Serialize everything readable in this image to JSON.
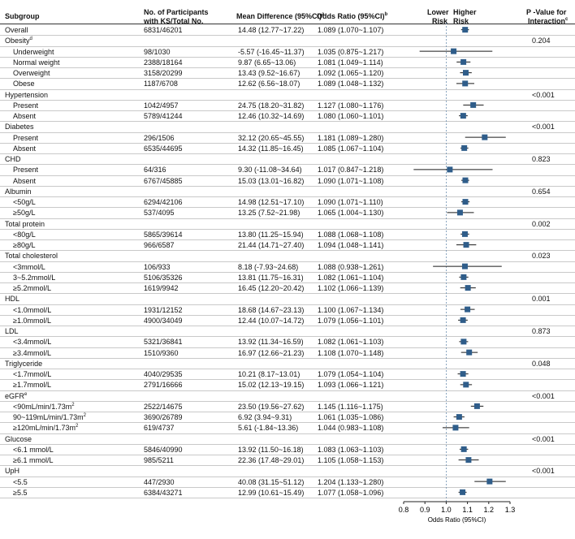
{
  "headers": {
    "subgroup": "Subgroup",
    "participants_line1": "No. of Participants",
    "participants_line2": "with KS/Total No.",
    "mean_diff": "Mean Difference (95%CI)",
    "mean_diff_sup": "a",
    "odds_ratio": "Odds Ratio (95%CI)",
    "odds_ratio_sup": "b",
    "lower_risk_line1": "Lower",
    "lower_risk_line2": "Risk",
    "higher_risk_line1": "Higher",
    "higher_risk_line2": "Risk",
    "pvalue_line1": "P -Value for",
    "pvalue_line2": "Interaction",
    "pvalue_sup": "c"
  },
  "rows": [
    {
      "kind": "head",
      "label": "Overall",
      "n": "6831/46201",
      "md": "14.48  (12.77~17.22)",
      "or_text": "1.089  (1.070~1.107)",
      "or": 1.089,
      "lo": 1.07,
      "hi": 1.107,
      "p": ""
    },
    {
      "kind": "group",
      "label": "Obesity",
      "sup": "d",
      "p": "0.204"
    },
    {
      "kind": "sub",
      "label": "Underweight",
      "n": "98/1030",
      "md": "-5.57  (-16.45~11.37)",
      "or_text": "1.035  (0.875~1.217)",
      "or": 1.035,
      "lo": 0.875,
      "hi": 1.217
    },
    {
      "kind": "sub",
      "label": "Normal weight",
      "n": "2388/18164",
      "md": "9.87  (6.65~13.06)",
      "or_text": "1.081  (1.049~1.114)",
      "or": 1.081,
      "lo": 1.049,
      "hi": 1.114
    },
    {
      "kind": "sub",
      "label": "Overweight",
      "n": "3158/20299",
      "md": "13.43  (9.52~16.67)",
      "or_text": "1.092  (1.065~1.120)",
      "or": 1.092,
      "lo": 1.065,
      "hi": 1.12
    },
    {
      "kind": "sub",
      "label": "Obese",
      "n": "1187/6708",
      "md": "12.62  (6.56~18.07)",
      "or_text": "1.089  (1.048~1.132)",
      "or": 1.089,
      "lo": 1.048,
      "hi": 1.132
    },
    {
      "kind": "group",
      "label": "Hypertension",
      "p": "<0.001"
    },
    {
      "kind": "sub",
      "label": "Present",
      "n": "1042/4957",
      "md": "24.75  (18.20~31.82)",
      "or_text": "1.127  (1.080~1.176)",
      "or": 1.127,
      "lo": 1.08,
      "hi": 1.176
    },
    {
      "kind": "sub",
      "label": "Absent",
      "n": "5789/41244",
      "md": "12.46  (10.32~14.69)",
      "or_text": "1.080  (1.060~1.101)",
      "or": 1.08,
      "lo": 1.06,
      "hi": 1.101
    },
    {
      "kind": "group",
      "label": "Diabetes",
      "p": "<0.001"
    },
    {
      "kind": "sub",
      "label": "Present",
      "n": "296/1506",
      "md": "32.12  (20.65~45.55)",
      "or_text": "1.181  (1.089~1.280)",
      "or": 1.181,
      "lo": 1.089,
      "hi": 1.28
    },
    {
      "kind": "sub",
      "label": "Absent",
      "n": "6535/44695",
      "md": "14.32  (11.85~16.45)",
      "or_text": "1.085  (1.067~1.104)",
      "or": 1.085,
      "lo": 1.067,
      "hi": 1.104
    },
    {
      "kind": "group",
      "label": "CHD",
      "p": "0.823"
    },
    {
      "kind": "sub",
      "label": "Present",
      "n": "64/316",
      "md": "9.30  (-11.08~34.64)",
      "or_text": "1.017  (0.847~1.218)",
      "or": 1.017,
      "lo": 0.847,
      "hi": 1.218
    },
    {
      "kind": "sub",
      "label": "Absent",
      "n": "6767/45885",
      "md": "15.03  (13.01~16.82)",
      "or_text": "1.090  (1.071~1.108)",
      "or": 1.09,
      "lo": 1.071,
      "hi": 1.108
    },
    {
      "kind": "group",
      "label": "Albumin",
      "p": "0.654"
    },
    {
      "kind": "sub",
      "label": "<50g/L",
      "n": "6294/42106",
      "md": "14.98  (12.51~17.10)",
      "or_text": "1.090  (1.071~1.110)",
      "or": 1.09,
      "lo": 1.071,
      "hi": 1.11
    },
    {
      "kind": "sub",
      "label": "≥50g/L",
      "n": "537/4095",
      "md": "13.25  (7.52~21.98)",
      "or_text": "1.065  (1.004~1.130)",
      "or": 1.065,
      "lo": 1.004,
      "hi": 1.13
    },
    {
      "kind": "group",
      "label": "Total protein",
      "p": "0.002"
    },
    {
      "kind": "sub",
      "label": "<80g/L",
      "n": "5865/39614",
      "md": "13.80  (11.25~15.94)",
      "or_text": "1.088  (1.068~1.108)",
      "or": 1.088,
      "lo": 1.068,
      "hi": 1.108
    },
    {
      "kind": "sub",
      "label": "≥80g/L",
      "n": "966/6587",
      "md": "21.44  (14.71~27.40)",
      "or_text": "1.094  (1.048~1.141)",
      "or": 1.094,
      "lo": 1.048,
      "hi": 1.141
    },
    {
      "kind": "group",
      "label": "Total cholesterol",
      "p": "0.023"
    },
    {
      "kind": "sub",
      "label": "<3mmol/L",
      "n": "106/933",
      "md": "8.18  (-7.93~24.68)",
      "or_text": "1.088  (0.938~1.261)",
      "or": 1.088,
      "lo": 0.938,
      "hi": 1.261
    },
    {
      "kind": "sub",
      "label": "3~5.2mmol/L",
      "n": "5106/35326",
      "md": "13.81  (11.75~16.31)",
      "or_text": "1.082  (1.061~1.104)",
      "or": 1.082,
      "lo": 1.061,
      "hi": 1.104
    },
    {
      "kind": "sub",
      "label": "≥5.2mmol/L",
      "n": "1619/9942",
      "md": "16.45  (12.20~20.42)",
      "or_text": "1.102  (1.066~1.139)",
      "or": 1.102,
      "lo": 1.066,
      "hi": 1.139
    },
    {
      "kind": "group",
      "label": "HDL",
      "p": "0.001"
    },
    {
      "kind": "sub",
      "label": "<1.0mmol/L",
      "n": "1931/12152",
      "md": "18.68  (14.67~23.13)",
      "or_text": "1.100  (1.067~1.134)",
      "or": 1.1,
      "lo": 1.067,
      "hi": 1.134
    },
    {
      "kind": "sub",
      "label": "≥1.0mmol/L",
      "n": "4900/34049",
      "md": "12.44  (10.07~14.72)",
      "or_text": "1.079  (1.056~1.101)",
      "or": 1.079,
      "lo": 1.056,
      "hi": 1.101
    },
    {
      "kind": "group",
      "label": "LDL",
      "p": "0.873"
    },
    {
      "kind": "sub",
      "label": "<3.4mmol/L",
      "n": "5321/36841",
      "md": "13.92  (11.34~16.59)",
      "or_text": "1.082  (1.061~1.103)",
      "or": 1.082,
      "lo": 1.061,
      "hi": 1.103
    },
    {
      "kind": "sub",
      "label": "≥3.4mmol/L",
      "n": "1510/9360",
      "md": "16.97  (12.66~21.23)",
      "or_text": "1.108  (1.070~1.148)",
      "or": 1.108,
      "lo": 1.07,
      "hi": 1.148
    },
    {
      "kind": "group",
      "label": "Triglyceride",
      "p": "0.048"
    },
    {
      "kind": "sub",
      "label": "<1.7mmol/L",
      "n": "4040/29535",
      "md": "10.21  (8.17~13.01)",
      "or_text": "1.079  (1.054~1.104)",
      "or": 1.079,
      "lo": 1.054,
      "hi": 1.104
    },
    {
      "kind": "sub",
      "label": "≥1.7mmol/L",
      "n": "2791/16666",
      "md": "15.02  (12.13~19.15)",
      "or_text": "1.093  (1.066~1.121)",
      "or": 1.093,
      "lo": 1.066,
      "hi": 1.121
    },
    {
      "kind": "group",
      "label": "eGFR",
      "sup": "e",
      "p": "<0.001"
    },
    {
      "kind": "sub",
      "label": "<90mL/min/1.73m",
      "sup": "2",
      "n": "2522/14675",
      "md": "23.50  (19.56~27.62)",
      "or_text": "1.145  (1.116~1.175)",
      "or": 1.145,
      "lo": 1.116,
      "hi": 1.175
    },
    {
      "kind": "sub",
      "label": "90~119mL/min/1.73m",
      "sup": "2",
      "n": "3690/26789",
      "md": "6.92  (3.94~9.31)",
      "or_text": "1.061  (1.035~1.086)",
      "or": 1.061,
      "lo": 1.035,
      "hi": 1.086
    },
    {
      "kind": "sub",
      "label": "≥120mL/min/1.73m",
      "sup": "2",
      "n": "619/4737",
      "md": "5.61  (-1.84~13.36)",
      "or_text": "1.044  (0.983~1.108)",
      "or": 1.044,
      "lo": 0.983,
      "hi": 1.108
    },
    {
      "kind": "group",
      "label": "Glucose",
      "p": "<0.001"
    },
    {
      "kind": "sub",
      "label": "<6.1 mmol/L",
      "n": "5846/40990",
      "md": "13.92  (11.50~16.18)",
      "or_text": "1.083  (1.063~1.103)",
      "or": 1.083,
      "lo": 1.063,
      "hi": 1.103
    },
    {
      "kind": "sub",
      "label": "≥6.1 mmol/L",
      "n": "985/5211",
      "md": "22.36  (17.48~29.01)",
      "or_text": "1.105  (1.058~1.153)",
      "or": 1.105,
      "lo": 1.058,
      "hi": 1.153
    },
    {
      "kind": "group",
      "label": "UpH",
      "p": "<0.001"
    },
    {
      "kind": "sub",
      "label": "<5.5",
      "n": "447/2930",
      "md": "40.08  (31.15~51.12)",
      "or_text": "1.204  (1.133~1.280)",
      "or": 1.204,
      "lo": 1.133,
      "hi": 1.28
    },
    {
      "kind": "sub",
      "label": "≥5.5",
      "n": "6384/43271",
      "md": "12.99  (10.61~15.49)",
      "or_text": "1.077  (1.058~1.096)",
      "or": 1.077,
      "lo": 1.058,
      "hi": 1.096
    }
  ],
  "chart_data": {
    "type": "forest",
    "xlabel": "Odds Ratio (95%CI)",
    "xlim": [
      0.8,
      1.3
    ],
    "xticks": [
      "0.8",
      "0.9",
      "1.0",
      "1.1",
      "1.2",
      "1.3"
    ],
    "reference_line": 1.0,
    "marker_color": "#2f5d8a",
    "line_color": "#1a1a1a"
  }
}
